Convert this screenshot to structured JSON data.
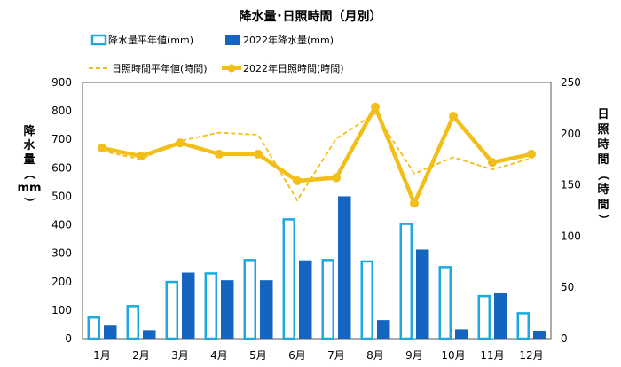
{
  "chart_data": {
    "type": "bar",
    "title": "降水量･日照時間（月別）",
    "categories": [
      "1月",
      "2月",
      "3月",
      "4月",
      "5月",
      "6月",
      "7月",
      "8月",
      "9月",
      "10月",
      "11月",
      "12月"
    ],
    "y_left": {
      "label_chars": [
        "降",
        "水",
        "量",
        "（",
        "mm",
        "）"
      ],
      "ylim": [
        0,
        900
      ],
      "ticks": [
        0,
        100,
        200,
        300,
        400,
        500,
        600,
        700,
        800,
        900
      ]
    },
    "y_right": {
      "label_chars": [
        "日",
        "照",
        "時",
        "間",
        "（",
        "時",
        "間",
        "）"
      ],
      "ylim": [
        0,
        250
      ],
      "ticks": [
        0,
        50,
        100,
        150,
        200,
        250
      ]
    },
    "series": [
      {
        "name": "降水量平年値(mm)",
        "kind": "bar",
        "axis": "left",
        "style": "outline",
        "color": "#1fa8e0",
        "values": [
          78,
          118,
          203,
          233,
          280,
          423,
          280,
          275,
          407,
          255,
          153,
          93
        ]
      },
      {
        "name": "2022年降水量(mm)",
        "kind": "bar",
        "axis": "left",
        "style": "filled",
        "color": "#1565c0",
        "values": [
          46,
          30,
          232,
          205,
          205,
          275,
          500,
          65,
          313,
          33,
          162,
          28
        ]
      },
      {
        "name": "日照時間平年値(時間)",
        "kind": "line",
        "axis": "right",
        "style": "dashed",
        "color": "#f2be1a",
        "values": [
          183,
          175,
          193,
          201,
          199,
          135,
          195,
          220,
          161,
          177,
          165,
          176
        ]
      },
      {
        "name": "2022年日照時間(時間)",
        "kind": "line",
        "axis": "right",
        "style": "solid-markers",
        "color": "#f2be1a",
        "values": [
          186,
          178,
          191,
          180,
          180,
          154,
          157,
          226,
          132,
          217,
          172,
          180
        ]
      }
    ],
    "grid": false,
    "legend": "top"
  }
}
